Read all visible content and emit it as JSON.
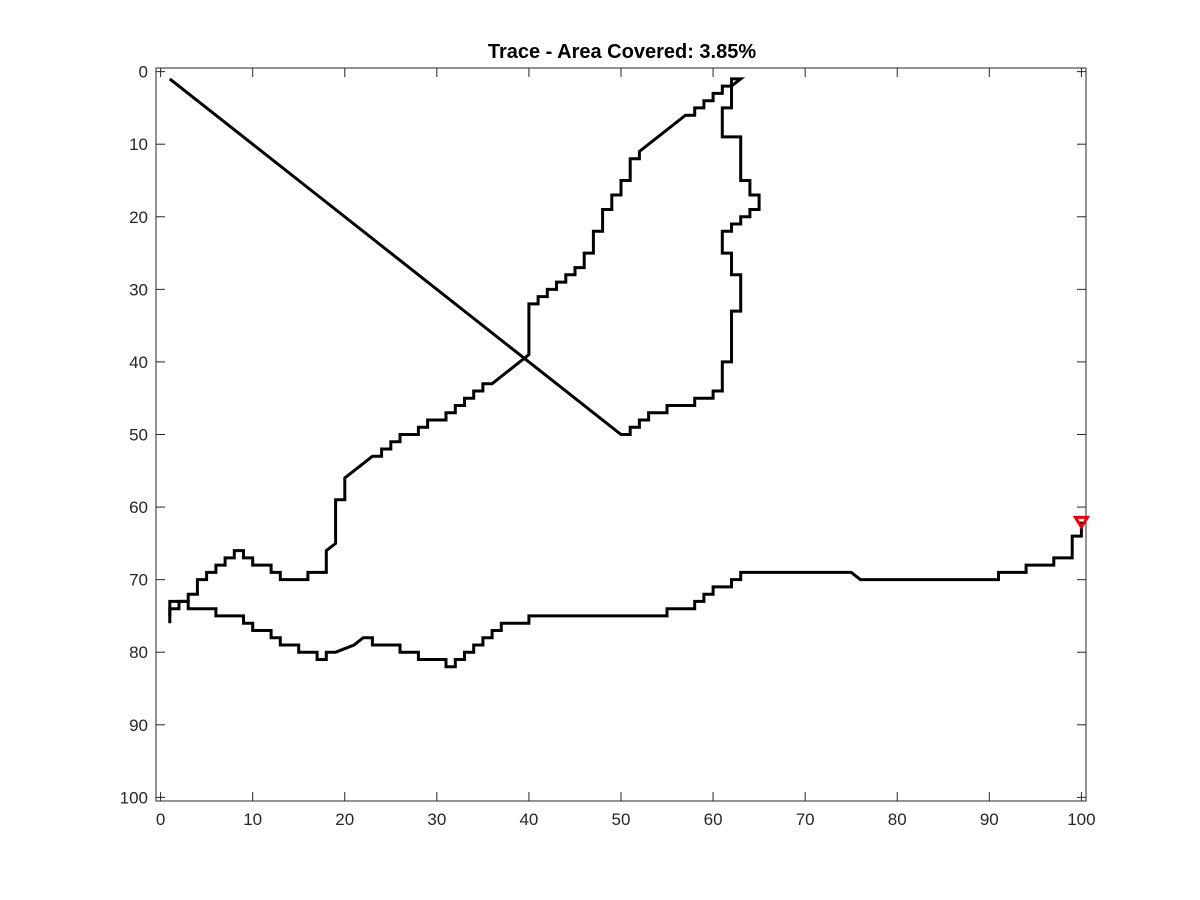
{
  "chart_data": {
    "type": "line",
    "title": "Trace - Area Covered: 3.85%",
    "xlabel": "",
    "ylabel": "",
    "xlim": [
      -0.5,
      100.5
    ],
    "ylim": [
      -0.5,
      100.5
    ],
    "y_reversed": true,
    "grid": false,
    "x_ticks": [
      0,
      10,
      20,
      30,
      40,
      50,
      60,
      70,
      80,
      90,
      100
    ],
    "y_ticks": [
      0,
      10,
      20,
      30,
      40,
      50,
      60,
      70,
      80,
      90,
      100
    ],
    "series": [
      {
        "color": "#000000",
        "points": [
          [
            1,
            76
          ],
          [
            1,
            73
          ],
          [
            3,
            73
          ],
          [
            3,
            74
          ],
          [
            6,
            74
          ],
          [
            6,
            75
          ],
          [
            9,
            75
          ],
          [
            9,
            76
          ],
          [
            10,
            76
          ],
          [
            10,
            77
          ],
          [
            12,
            77
          ],
          [
            12,
            78
          ],
          [
            13,
            78
          ],
          [
            13,
            79
          ],
          [
            15,
            79
          ],
          [
            15,
            80
          ],
          [
            17,
            80
          ],
          [
            17,
            81
          ],
          [
            18,
            81
          ],
          [
            18,
            80
          ],
          [
            19,
            80
          ],
          [
            21,
            79
          ],
          [
            22,
            78
          ],
          [
            23,
            78
          ],
          [
            23,
            79
          ],
          [
            26,
            79
          ],
          [
            26,
            80
          ],
          [
            28,
            80
          ],
          [
            28,
            81
          ],
          [
            31,
            81
          ],
          [
            31,
            82
          ],
          [
            32,
            82
          ],
          [
            32,
            81
          ],
          [
            33,
            81
          ],
          [
            33,
            80
          ],
          [
            34,
            80
          ],
          [
            34,
            79
          ],
          [
            35,
            79
          ],
          [
            35,
            78
          ],
          [
            36,
            78
          ],
          [
            36,
            77
          ],
          [
            37,
            77
          ],
          [
            37,
            76
          ],
          [
            40,
            76
          ],
          [
            40,
            75
          ],
          [
            55,
            75
          ],
          [
            55,
            74
          ],
          [
            58,
            74
          ],
          [
            58,
            73
          ],
          [
            59,
            73
          ],
          [
            59,
            72
          ],
          [
            60,
            72
          ],
          [
            60,
            71
          ],
          [
            62,
            71
          ],
          [
            62,
            70
          ],
          [
            63,
            70
          ],
          [
            63,
            69
          ],
          [
            75,
            69
          ],
          [
            76,
            70
          ],
          [
            91,
            70
          ],
          [
            91,
            69
          ],
          [
            94,
            69
          ],
          [
            94,
            68
          ],
          [
            97,
            68
          ],
          [
            97,
            67
          ],
          [
            99,
            67
          ],
          [
            99,
            64
          ],
          [
            100,
            64
          ],
          [
            100,
            62
          ]
        ]
      },
      {
        "color": "#000000",
        "points": [
          [
            1,
            75
          ],
          [
            1,
            74
          ],
          [
            2,
            74
          ],
          [
            2,
            73
          ],
          [
            3,
            73
          ],
          [
            3,
            72
          ],
          [
            4,
            72
          ],
          [
            4,
            70
          ],
          [
            5,
            70
          ],
          [
            5,
            69
          ],
          [
            6,
            69
          ],
          [
            6,
            68
          ],
          [
            7,
            68
          ],
          [
            7,
            67
          ],
          [
            8,
            67
          ],
          [
            8,
            66
          ],
          [
            9,
            66
          ],
          [
            9,
            67
          ],
          [
            10,
            67
          ],
          [
            10,
            68
          ],
          [
            12,
            68
          ],
          [
            12,
            69
          ],
          [
            13,
            69
          ],
          [
            13,
            70
          ],
          [
            16,
            70
          ],
          [
            16,
            69
          ],
          [
            18,
            69
          ],
          [
            18,
            66
          ],
          [
            19,
            65
          ],
          [
            19,
            59
          ],
          [
            20,
            59
          ],
          [
            20,
            56
          ],
          [
            23,
            53
          ],
          [
            24,
            53
          ],
          [
            24,
            52
          ],
          [
            25,
            52
          ],
          [
            25,
            51
          ],
          [
            26,
            51
          ],
          [
            26,
            50
          ],
          [
            28,
            50
          ],
          [
            28,
            49
          ],
          [
            29,
            49
          ],
          [
            29,
            48
          ],
          [
            31,
            48
          ],
          [
            31,
            47
          ],
          [
            32,
            47
          ],
          [
            32,
            46
          ],
          [
            33,
            46
          ],
          [
            33,
            45
          ],
          [
            34,
            45
          ],
          [
            34,
            44
          ],
          [
            35,
            44
          ],
          [
            35,
            43
          ],
          [
            36,
            43
          ],
          [
            40,
            39
          ],
          [
            40,
            32
          ],
          [
            41,
            32
          ],
          [
            41,
            31
          ],
          [
            42,
            31
          ],
          [
            42,
            30
          ],
          [
            43,
            30
          ],
          [
            43,
            29
          ],
          [
            44,
            29
          ],
          [
            44,
            28
          ],
          [
            45,
            28
          ],
          [
            45,
            27
          ],
          [
            46,
            27
          ],
          [
            46,
            25
          ],
          [
            47,
            25
          ],
          [
            47,
            22
          ],
          [
            48,
            22
          ],
          [
            48,
            19
          ],
          [
            49,
            19
          ],
          [
            49,
            17
          ],
          [
            50,
            17
          ],
          [
            50,
            15
          ],
          [
            51,
            15
          ],
          [
            51,
            12
          ],
          [
            52,
            12
          ],
          [
            52,
            11
          ],
          [
            57,
            6
          ],
          [
            58,
            6
          ],
          [
            58,
            5
          ],
          [
            59,
            5
          ],
          [
            59,
            4
          ],
          [
            60,
            4
          ],
          [
            60,
            3
          ],
          [
            61,
            3
          ],
          [
            61,
            2
          ],
          [
            62,
            2
          ],
          [
            62,
            1
          ],
          [
            63,
            1
          ],
          [
            62,
            2
          ],
          [
            62,
            5
          ],
          [
            61,
            5
          ],
          [
            61,
            9
          ],
          [
            63,
            9
          ],
          [
            63,
            15
          ],
          [
            64,
            15
          ],
          [
            64,
            17
          ],
          [
            65,
            17
          ],
          [
            65,
            19
          ],
          [
            64,
            19
          ],
          [
            64,
            20
          ],
          [
            63,
            20
          ],
          [
            63,
            21
          ],
          [
            62,
            21
          ],
          [
            62,
            22
          ],
          [
            61,
            22
          ],
          [
            61,
            23
          ],
          [
            61,
            25
          ],
          [
            62,
            25
          ],
          [
            62,
            28
          ],
          [
            63,
            28
          ],
          [
            63,
            33
          ],
          [
            62,
            33
          ],
          [
            62,
            40
          ],
          [
            61,
            40
          ],
          [
            61,
            44
          ],
          [
            60,
            44
          ],
          [
            60,
            45
          ],
          [
            58,
            45
          ],
          [
            58,
            46
          ],
          [
            55,
            46
          ],
          [
            55,
            47
          ],
          [
            53,
            47
          ],
          [
            53,
            48
          ],
          [
            52,
            48
          ],
          [
            52,
            49
          ],
          [
            51,
            49
          ],
          [
            51,
            50
          ],
          [
            50,
            50
          ],
          [
            1,
            1
          ]
        ]
      }
    ],
    "markers": [
      {
        "shape": "triangle-down",
        "color": "#e8000b",
        "point": [
          100,
          62
        ]
      }
    ]
  }
}
